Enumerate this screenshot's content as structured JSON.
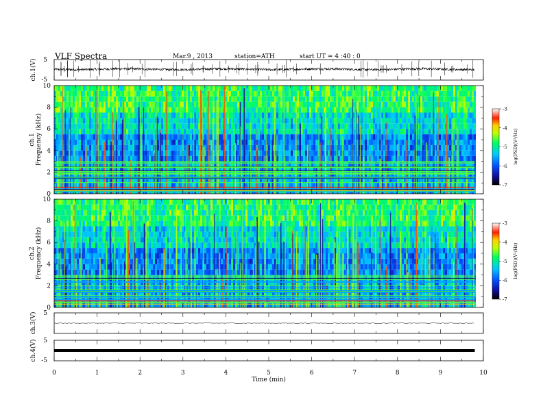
{
  "header": {
    "title": "VLF  Spectra",
    "date": "Mar.9  , 2013",
    "station": "station=ATH",
    "start": "start  UT  =   4  :40 : 0"
  },
  "chart_data": [
    {
      "type": "line",
      "panel": "ch1-waveform",
      "ylabel": "ch.1(V)",
      "yticks": [
        "5",
        "-5"
      ],
      "ylim": [
        -5,
        5
      ],
      "xlim": [
        0,
        10
      ],
      "baseline_level": 0.3,
      "data_end_min": 9.8
    },
    {
      "type": "heatmap",
      "panel": "ch1-spectrogram",
      "ylabel_channel": "ch.1",
      "ylabel": "Frequency  (kHz)",
      "yticks": [
        "0",
        "2",
        "4",
        "6",
        "8",
        "10"
      ],
      "ylim_khz": [
        0,
        10
      ],
      "xlim_min": [
        0,
        10
      ],
      "data_end_min": 9.8,
      "colorbar": {
        "label": "log(PSD)(V²/Hz)",
        "ticks": [
          "-3",
          "-4",
          "-5",
          "-6",
          "-7"
        ],
        "range": [
          -7,
          -3
        ]
      }
    },
    {
      "type": "heatmap",
      "panel": "ch2-spectrogram",
      "ylabel_channel": "ch.2",
      "ylabel": "Frequency  (kHz)",
      "yticks": [
        "0",
        "2",
        "4",
        "6",
        "8",
        "10"
      ],
      "ylim_khz": [
        0,
        10
      ],
      "xlim_min": [
        0,
        10
      ],
      "data_end_min": 9.8,
      "colorbar": {
        "label": "log(PSD)(V²/Hz)",
        "ticks": [
          "-3",
          "-4",
          "-5",
          "-6",
          "-7"
        ],
        "range": [
          -7,
          -3
        ]
      }
    },
    {
      "type": "line",
      "panel": "ch3-waveform",
      "ylabel": "ch.3(V)",
      "yticks": [
        "5"
      ],
      "ylim": [
        -5,
        5
      ],
      "xlim": [
        0,
        10
      ],
      "baseline_level": 0,
      "data_end_min": 9.8
    },
    {
      "type": "line",
      "panel": "ch4-waveform",
      "ylabel": "ch.4(V)",
      "yticks": [
        "5",
        "-5"
      ],
      "ylim": [
        -5,
        5
      ],
      "xlim": [
        0,
        10
      ],
      "baseline_level": 0,
      "data_end_min": 9.8
    }
  ],
  "x_axis": {
    "label": "Time  (min)",
    "ticks": [
      "0",
      "1",
      "2",
      "3",
      "4",
      "5",
      "6",
      "7",
      "8",
      "9",
      "10"
    ],
    "range": [
      0,
      10
    ]
  }
}
